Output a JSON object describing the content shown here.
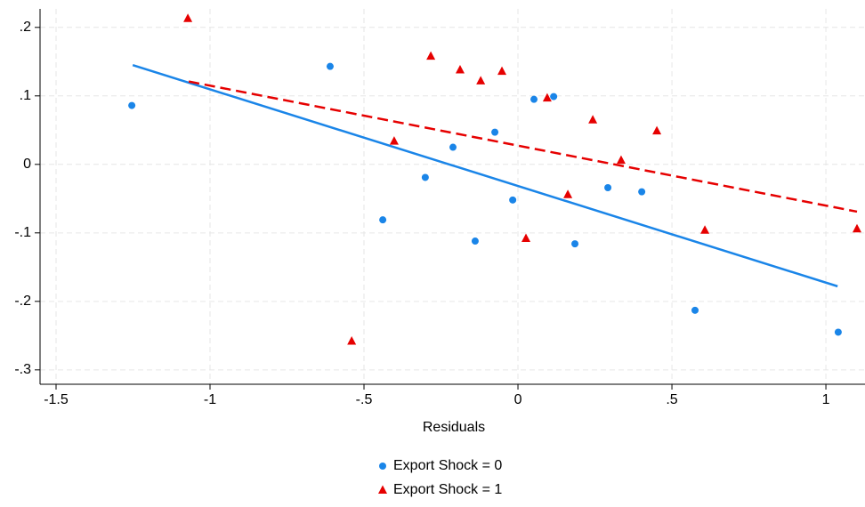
{
  "chart_data": {
    "type": "scatter",
    "x_label": "Residuals",
    "xlim": [
      -1.552,
      1.127
    ],
    "ylim": [
      -0.321,
      0.227
    ],
    "xticks": [
      -1.5,
      -1,
      {
        "value": -0.5,
        "label": "-.5"
      },
      0,
      {
        "value": 0.5,
        "label": ".5"
      },
      1
    ],
    "yticks": [
      {
        "value": 0.2,
        "label": ".2"
      },
      {
        "value": 0.1,
        "label": ".1"
      },
      0,
      {
        "value": -0.1,
        "label": "-.1"
      },
      {
        "value": -0.2,
        "label": "-.2"
      },
      {
        "value": -0.3,
        "label": "-.3"
      }
    ],
    "grid": true,
    "series": [
      {
        "name": "Export Shock = 0",
        "color": "#1a85e8",
        "marker": "circle",
        "x": [
          -1.254,
          -0.61,
          -0.439,
          -0.301,
          -0.211,
          -0.139,
          -0.075,
          -0.017,
          0.052,
          0.116,
          0.185,
          0.292,
          0.402,
          0.575,
          1.04
        ],
        "y": [
          0.086,
          0.143,
          -0.081,
          -0.019,
          0.025,
          -0.112,
          0.047,
          -0.052,
          0.095,
          0.099,
          -0.116,
          -0.034,
          -0.04,
          -0.213,
          -0.245
        ],
        "fit": {
          "x": [
            -1.251,
            1.038
          ],
          "y": [
            0.145,
            -0.178
          ],
          "dashed": false
        }
      },
      {
        "name": "Export Shock = 1",
        "color": "#e60000",
        "marker": "triangle",
        "x": [
          -1.072,
          -0.54,
          -0.402,
          -0.283,
          -0.188,
          -0.121,
          -0.052,
          0.026,
          0.095,
          0.162,
          0.243,
          0.335,
          0.451,
          0.607,
          1.101
        ],
        "y": [
          0.213,
          -0.258,
          0.034,
          0.158,
          0.138,
          0.122,
          0.136,
          -0.108,
          0.097,
          -0.044,
          0.065,
          0.006,
          0.049,
          -0.096,
          -0.094
        ],
        "fit": {
          "x": [
            -1.069,
            1.101
          ],
          "y": [
            0.121,
            -0.069
          ],
          "dashed": true
        }
      }
    ]
  }
}
